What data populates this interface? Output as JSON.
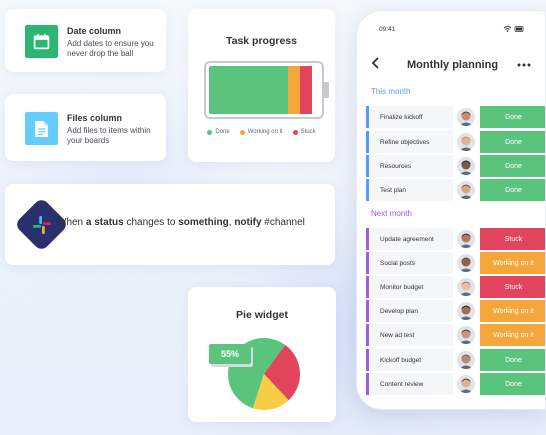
{
  "colors": {
    "done": "#5ac47d",
    "working": "#f5a63b",
    "stuck": "#e2445c",
    "this_month": "#579bfc",
    "next_month": "#a25ddc",
    "date_icon_bg": "#2bb673",
    "files_icon_bg": "#66ccff",
    "pie_yellow": "#f7cd45"
  },
  "cards": {
    "date_column": {
      "icon": "calendar-icon",
      "title": "Date column",
      "description": "Add dates to ensure you never drop the ball"
    },
    "files_column": {
      "icon": "file-icon",
      "title": "Files column",
      "description": "Add files to items within your boards"
    },
    "task_progress": {
      "title": "Task progress",
      "done_fraction": 0.72,
      "working_fraction": 0.11,
      "stuck_fraction": 0.11,
      "legend": [
        "Done",
        "Working on it",
        "Stuck"
      ]
    },
    "automation": {
      "icon": "slack-icon",
      "t1": "When ",
      "t2": "a status",
      "t3": " changes to ",
      "t4": "something",
      "t5": ", ",
      "t6": "notify",
      "t7": " #channel"
    },
    "pie_widget": {
      "title": "Pie widget",
      "badge": "55%"
    }
  },
  "chart_data": {
    "type": "pie",
    "categories": [
      "Done",
      "Stuck",
      "Working on it"
    ],
    "values": [
      55,
      28,
      17
    ]
  },
  "phone": {
    "time": "09:41",
    "status_icons": "wifi-icon battery-icon",
    "title": "Monthly planning",
    "back_icon": "chevron-left-icon",
    "more_icon": "more-icon",
    "group_this_month": "This month",
    "group_next_month": "Next month",
    "rows": [
      {
        "name": "Finalize kickoff",
        "status": "Done",
        "group": "this"
      },
      {
        "name": "Refine objectives",
        "status": "Done",
        "group": "this"
      },
      {
        "name": "Resources",
        "status": "Done",
        "group": "this"
      },
      {
        "name": "Test plan",
        "status": "Done",
        "group": "this"
      },
      {
        "name": "Update agreement",
        "status": "Stuck",
        "group": "next"
      },
      {
        "name": "Social posts",
        "status": "Working on it",
        "group": "next"
      },
      {
        "name": "Monitor budget",
        "status": "Stuck",
        "group": "next"
      },
      {
        "name": "Develop plan",
        "status": "Working on it",
        "group": "next"
      },
      {
        "name": "New ad test",
        "status": "Working on it",
        "group": "next"
      },
      {
        "name": "Kickoff budget",
        "status": "Done",
        "group": "next"
      },
      {
        "name": "Content review",
        "status": "Done",
        "group": "next"
      }
    ]
  }
}
